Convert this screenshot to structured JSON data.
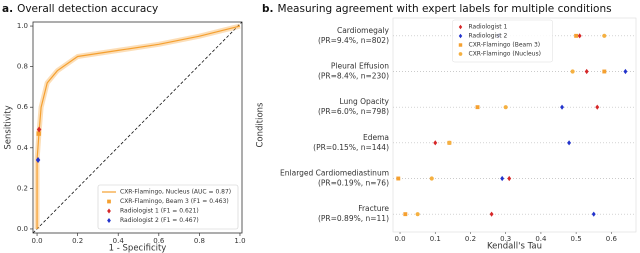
{
  "chart_data": [
    {
      "type": "line",
      "title_prefix": "a.",
      "title": "Overall detection accuracy",
      "xlabel": "1 - Specificity",
      "ylabel": "Sensitivity",
      "xlim": [
        -0.02,
        1.01
      ],
      "ylim": [
        -0.02,
        1.02
      ],
      "xticks": [
        {
          "value": 0,
          "label": "0.0"
        },
        {
          "value": 0.2,
          "label": "0.2"
        },
        {
          "value": 0.4,
          "label": "0.4"
        },
        {
          "value": 0.6,
          "label": "0.6"
        },
        {
          "value": 0.8,
          "label": "0.8"
        },
        {
          "value": 1,
          "label": "1.0"
        }
      ],
      "yticks": [
        {
          "value": 0,
          "label": "0.0"
        },
        {
          "value": 0.2,
          "label": "0.2"
        },
        {
          "value": 0.4,
          "label": "0.4"
        },
        {
          "value": 0.6,
          "label": "0.6"
        },
        {
          "value": 0.8,
          "label": "0.8"
        },
        {
          "value": 1,
          "label": "1.0"
        }
      ],
      "legend": "lower right",
      "series": [
        {
          "name": "CXR-Flamingo, Nucleus (AUC = 0.87)",
          "color": "#f5a030",
          "x": [
            0,
            0,
            0.01,
            0.02,
            0.05,
            0.1,
            0.2,
            0.4,
            0.6,
            0.8,
            1
          ],
          "y": [
            0,
            0.34,
            0.48,
            0.6,
            0.72,
            0.78,
            0.85,
            0.88,
            0.91,
            0.95,
            1
          ]
        }
      ],
      "points": [
        {
          "name": "CXR-Flamingo, Beam 3 (F1 = 0.463)",
          "color": "#f5a030",
          "marker": "square",
          "x": 0.008,
          "y": 0.47
        },
        {
          "name": "Radiologist 1 (F1 = 0.621)",
          "color": "#d62728",
          "marker": "diamond",
          "x": 0.01,
          "y": 0.49
        },
        {
          "name": "Radiologist 2 (F1 = 0.467)",
          "color": "#2233cc",
          "marker": "diamond",
          "x": 0.005,
          "y": 0.34
        }
      ]
    },
    {
      "type": "dot",
      "title_prefix": "b.",
      "title": "Measuring agreement with expert labels for multiple conditions",
      "xlabel": "Kendall's Tau",
      "ylabel": "Conditions",
      "categories": [
        "Cardiomegaly",
        "Pleural Effusion",
        "Lung Opacity",
        "Edema",
        "Enlarged Cardiomediastinum",
        "Fracture"
      ],
      "category_details": [
        "(PR=9.4%, n=802)",
        "(PR=8.4%, n=230)",
        "(PR=6.0%, n=798)",
        "(PR=0.15%, n=144)",
        "(PR=0.19%, n=76)",
        "(PR=0.89%, n=11)"
      ],
      "xlim": [
        -0.02,
        0.67
      ],
      "xticks": [
        {
          "value": 0,
          "label": "0.0"
        },
        {
          "value": 0.1,
          "label": "0.1"
        },
        {
          "value": 0.2,
          "label": "0.2"
        },
        {
          "value": 0.3,
          "label": "0.3"
        },
        {
          "value": 0.4,
          "label": "0.4"
        },
        {
          "value": 0.5,
          "label": "0.5"
        },
        {
          "value": 0.6,
          "label": "0.6"
        }
      ],
      "grid": true,
      "legend": "upper center",
      "series": [
        {
          "name": "Radiologist 1",
          "color": "#d62728",
          "marker": "diamond",
          "values": [
            0.51,
            0.53,
            0.56,
            0.1,
            0.31,
            0.26
          ]
        },
        {
          "name": "Radiologist 2",
          "color": "#2233cc",
          "marker": "diamond",
          "values": [
            0.28,
            0.64,
            0.46,
            0.48,
            0.29,
            0.55
          ]
        },
        {
          "name": "CXR-Flamingo (Beam 3)",
          "color": "#f5a030",
          "marker": "square",
          "values": [
            0.5,
            0.58,
            0.22,
            0.14,
            -0.005,
            0.015
          ]
        },
        {
          "name": "CXR-Flamingo (Nucleus)",
          "color": "#f5b040",
          "marker": "circle",
          "values": [
            0.58,
            0.49,
            0.3,
            0.14,
            0.09,
            0.05
          ]
        }
      ]
    }
  ]
}
